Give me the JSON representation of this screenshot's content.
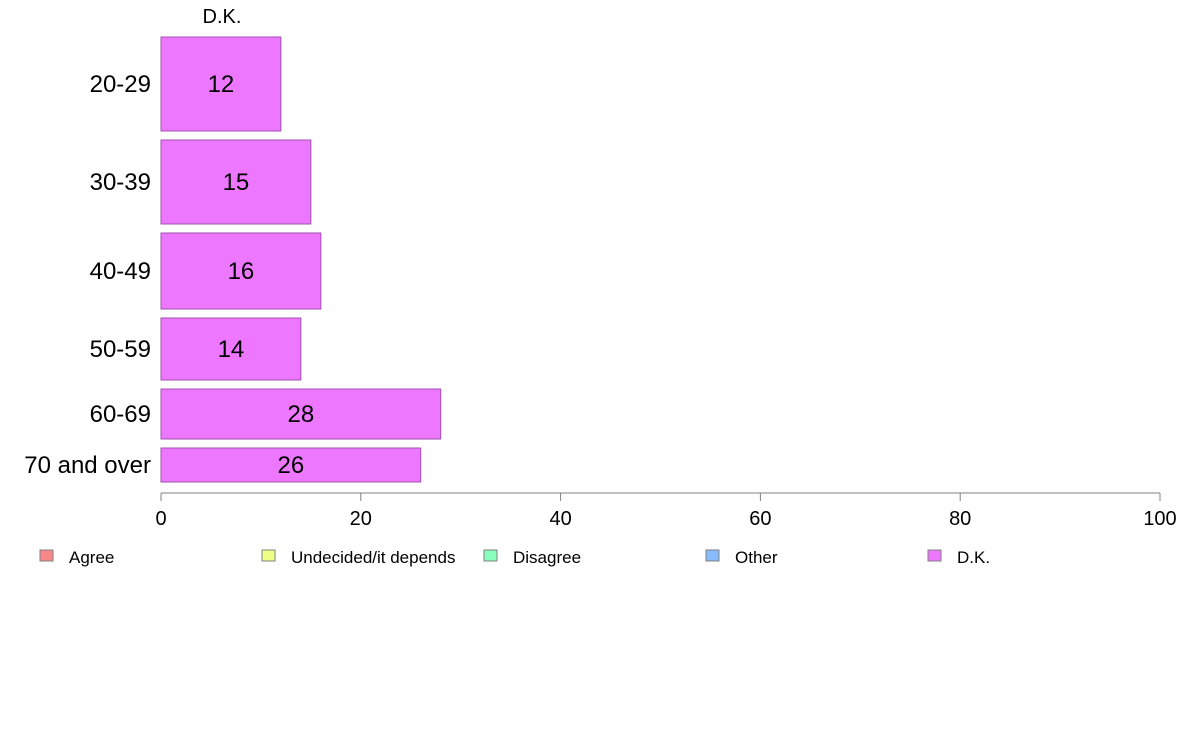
{
  "chart_data": {
    "type": "bar",
    "orientation": "horizontal",
    "panel_title": "D.K.",
    "categories": [
      "20-29",
      "30-39",
      "40-49",
      "50-59",
      "60-69",
      "70 and over"
    ],
    "series": [
      {
        "name": "D.K.",
        "values": [
          12,
          15,
          16,
          14,
          28,
          26
        ],
        "labels": [
          "12",
          "15",
          "16",
          "14",
          "28",
          "26"
        ],
        "color": "#ee77ff"
      }
    ],
    "xlim": [
      0,
      100
    ],
    "xticks": [
      0,
      20,
      40,
      60,
      80,
      100
    ],
    "xtick_labels": [
      "0",
      "20",
      "40",
      "60",
      "80",
      "100"
    ],
    "grid": false,
    "legend_position": "bottom",
    "legend": [
      {
        "label": "Agree",
        "color": "#f88888"
      },
      {
        "label": "Undecided/it depends",
        "color": "#eeff88"
      },
      {
        "label": "Disagree",
        "color": "#88ffbb"
      },
      {
        "label": "Other",
        "color": "#88bbff"
      },
      {
        "label": "D.K.",
        "color": "#ee77ff"
      }
    ]
  }
}
